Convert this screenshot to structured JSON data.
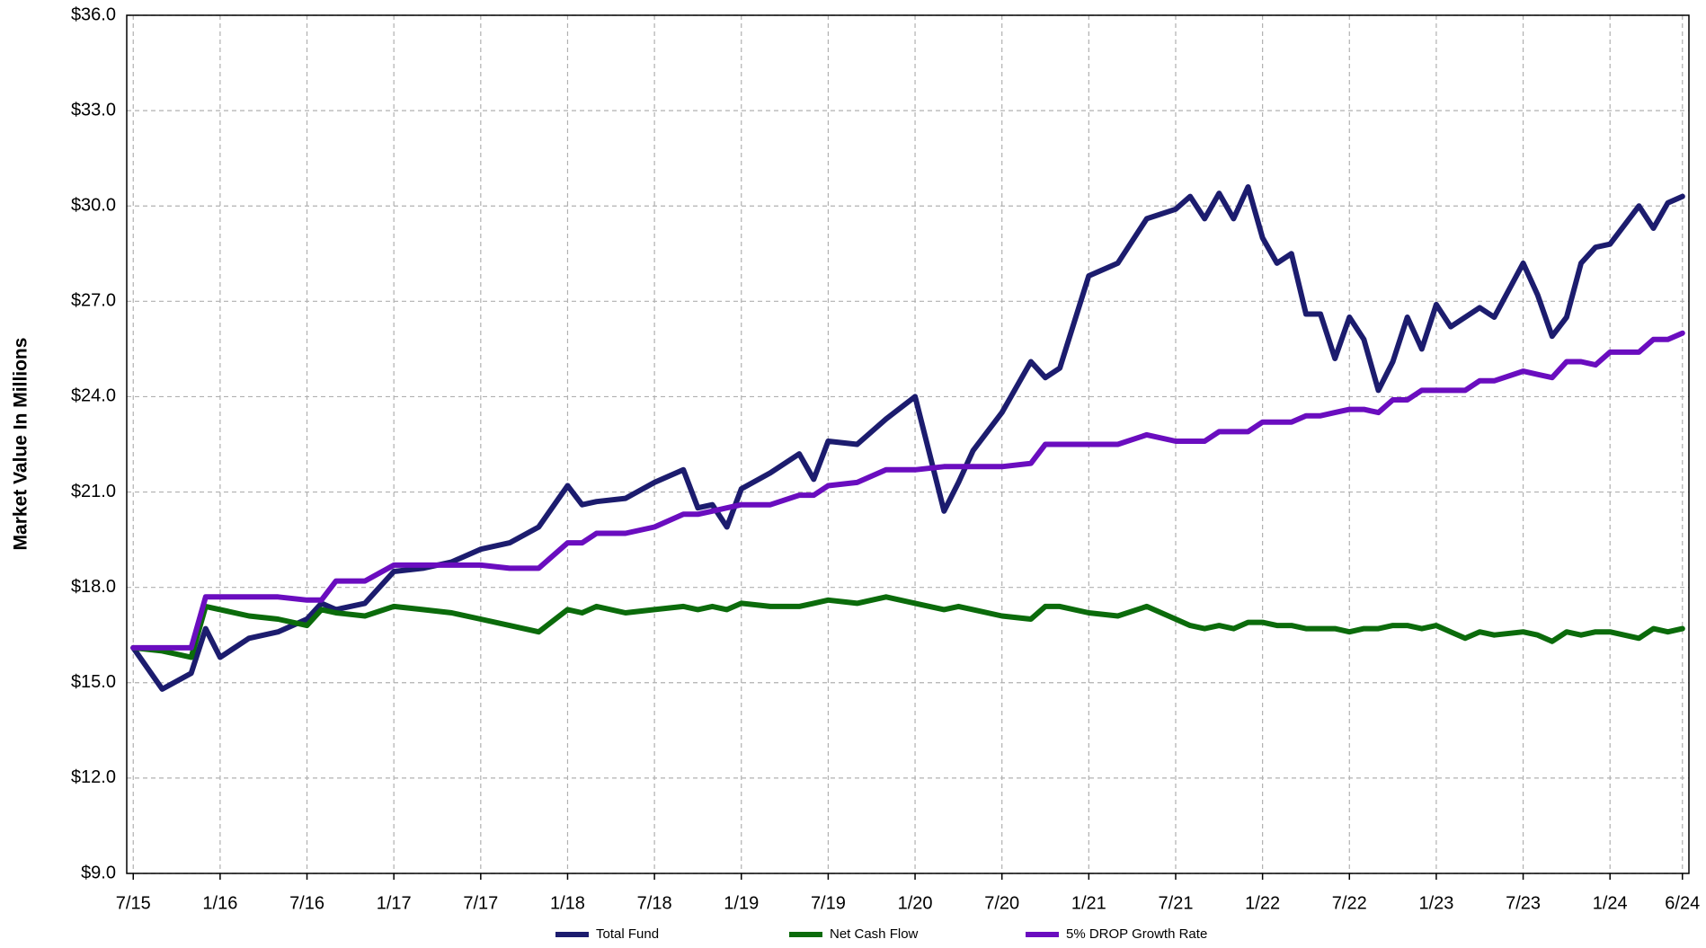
{
  "chart_data": {
    "type": "line",
    "ylabel": "Market Value In Millions",
    "x": [
      0,
      2,
      4,
      5,
      6,
      8,
      10,
      12,
      13,
      14,
      16,
      18,
      20,
      22,
      24,
      26,
      28,
      30,
      31,
      32,
      34,
      36,
      38,
      39,
      40,
      41,
      42,
      44,
      46,
      47,
      48,
      50,
      52,
      54,
      56,
      57,
      58,
      60,
      62,
      63,
      64,
      66,
      68,
      70,
      72,
      73,
      74,
      75,
      76,
      77,
      78,
      79,
      80,
      81,
      82,
      83,
      84,
      85,
      86,
      87,
      88,
      89,
      90,
      91,
      92,
      93,
      94,
      96,
      97,
      98,
      99,
      100,
      101,
      102,
      104,
      105,
      106,
      107
    ],
    "series": [
      {
        "name": "Total Fund",
        "color": "#1c1c6e",
        "values": [
          16.1,
          14.8,
          15.3,
          16.7,
          15.8,
          16.4,
          16.6,
          17.0,
          17.5,
          17.3,
          17.5,
          18.5,
          18.6,
          18.8,
          19.2,
          19.4,
          19.9,
          21.2,
          20.6,
          20.7,
          20.8,
          21.3,
          21.7,
          20.5,
          20.6,
          19.9,
          21.1,
          21.6,
          22.2,
          21.4,
          22.6,
          22.5,
          23.3,
          24.0,
          20.4,
          21.3,
          22.3,
          23.5,
          25.1,
          24.6,
          24.9,
          27.8,
          28.2,
          29.6,
          29.9,
          30.3,
          29.6,
          30.4,
          29.6,
          30.6,
          29.0,
          28.2,
          28.5,
          26.6,
          26.6,
          25.2,
          26.5,
          25.8,
          24.2,
          25.1,
          26.5,
          25.5,
          26.9,
          26.2,
          26.5,
          26.8,
          26.5,
          28.2,
          27.2,
          25.9,
          26.5,
          28.2,
          28.7,
          28.8,
          30.0,
          29.3,
          30.1,
          30.3
        ]
      },
      {
        "name": "Net Cash Flow",
        "color": "#0b6b0b",
        "values": [
          16.1,
          16.0,
          15.8,
          17.4,
          17.3,
          17.1,
          17.0,
          16.8,
          17.3,
          17.2,
          17.1,
          17.4,
          17.3,
          17.2,
          17.0,
          16.8,
          16.6,
          17.3,
          17.2,
          17.4,
          17.2,
          17.3,
          17.4,
          17.3,
          17.4,
          17.3,
          17.5,
          17.4,
          17.4,
          17.5,
          17.6,
          17.5,
          17.7,
          17.5,
          17.3,
          17.4,
          17.3,
          17.1,
          17.0,
          17.4,
          17.4,
          17.2,
          17.1,
          17.4,
          17.0,
          16.8,
          16.7,
          16.8,
          16.7,
          16.9,
          16.9,
          16.8,
          16.8,
          16.7,
          16.7,
          16.7,
          16.6,
          16.7,
          16.7,
          16.8,
          16.8,
          16.7,
          16.8,
          16.6,
          16.4,
          16.6,
          16.5,
          16.6,
          16.5,
          16.3,
          16.6,
          16.5,
          16.6,
          16.6,
          16.4,
          16.7,
          16.6,
          16.7
        ]
      },
      {
        "name": "5% DROP Growth Rate",
        "color": "#6a0dbf",
        "values": [
          16.1,
          16.1,
          16.1,
          17.7,
          17.7,
          17.7,
          17.7,
          17.6,
          17.6,
          18.2,
          18.2,
          18.7,
          18.7,
          18.7,
          18.7,
          18.6,
          18.6,
          19.4,
          19.4,
          19.7,
          19.7,
          19.9,
          20.3,
          20.3,
          20.4,
          20.5,
          20.6,
          20.6,
          20.9,
          20.9,
          21.2,
          21.3,
          21.7,
          21.7,
          21.8,
          21.8,
          21.8,
          21.8,
          21.9,
          22.5,
          22.5,
          22.5,
          22.5,
          22.8,
          22.6,
          22.6,
          22.6,
          22.9,
          22.9,
          22.9,
          23.2,
          23.2,
          23.2,
          23.4,
          23.4,
          23.5,
          23.6,
          23.6,
          23.5,
          23.9,
          23.9,
          24.2,
          24.2,
          24.2,
          24.2,
          24.5,
          24.5,
          24.8,
          24.7,
          24.6,
          25.1,
          25.1,
          25.0,
          25.4,
          25.4,
          25.8,
          25.8,
          26.0
        ]
      }
    ],
    "xlim": [
      -0.45,
      107.45
    ],
    "xticks": [
      {
        "value": 0,
        "label": "7/15"
      },
      {
        "value": 6,
        "label": "1/16"
      },
      {
        "value": 12,
        "label": "7/16"
      },
      {
        "value": 18,
        "label": "1/17"
      },
      {
        "value": 24,
        "label": "7/17"
      },
      {
        "value": 30,
        "label": "1/18"
      },
      {
        "value": 36,
        "label": "7/18"
      },
      {
        "value": 42,
        "label": "1/19"
      },
      {
        "value": 48,
        "label": "7/19"
      },
      {
        "value": 54,
        "label": "1/20"
      },
      {
        "value": 60,
        "label": "7/20"
      },
      {
        "value": 66,
        "label": "1/21"
      },
      {
        "value": 72,
        "label": "7/21"
      },
      {
        "value": 78,
        "label": "1/22"
      },
      {
        "value": 84,
        "label": "7/22"
      },
      {
        "value": 90,
        "label": "1/23"
      },
      {
        "value": 96,
        "label": "7/23"
      },
      {
        "value": 102,
        "label": "1/24"
      },
      {
        "value": 107,
        "label": "6/24"
      }
    ],
    "ylim": [
      9,
      36
    ],
    "yticks": [
      {
        "value": 9,
        "label": "$9.0"
      },
      {
        "value": 12,
        "label": "$12.0"
      },
      {
        "value": 15,
        "label": "$15.0"
      },
      {
        "value": 18,
        "label": "$18.0"
      },
      {
        "value": 21,
        "label": "$21.0"
      },
      {
        "value": 24,
        "label": "$24.0"
      },
      {
        "value": 27,
        "label": "$27.0"
      },
      {
        "value": 30,
        "label": "$30.0"
      },
      {
        "value": 33,
        "label": "$33.0"
      },
      {
        "value": 36,
        "label": "$36.0"
      }
    ],
    "grid": true,
    "legend": "bottom"
  }
}
